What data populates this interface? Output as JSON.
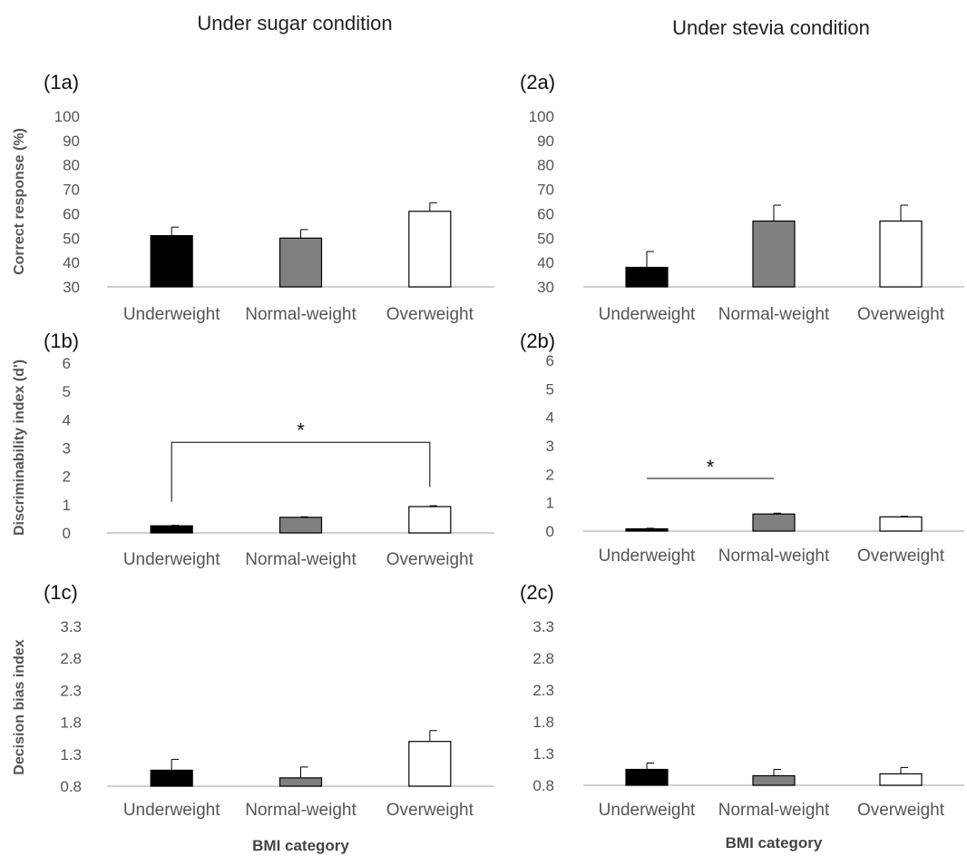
{
  "headers": {
    "left": "Under sugar condition",
    "right": "Under stevia condition"
  },
  "colors": {
    "underweight": "#000000",
    "normal_weight": "#808080",
    "overweight": "#ffffff",
    "axis": "#bfbfbf",
    "text": "#555555"
  },
  "chart_data": [
    {
      "panel": "(1a)",
      "type": "bar",
      "categories": [
        "Underweight",
        "Normal-weight",
        "Overweight"
      ],
      "values": [
        51,
        50,
        61
      ],
      "errors": [
        3.5,
        3.5,
        3.5
      ],
      "ylabel": "Correct response (%)",
      "xlabel": "",
      "yticks": [
        "30",
        "40",
        "50",
        "60",
        "70",
        "80",
        "90",
        "100"
      ],
      "ylim": [
        30,
        100
      ],
      "significance": []
    },
    {
      "panel": "(1b)",
      "type": "bar",
      "categories": [
        "Underweight",
        "Normal-weight",
        "Overweight"
      ],
      "values": [
        0.25,
        0.55,
        0.93
      ],
      "errors": [
        0.02,
        0.02,
        0.03
      ],
      "ylabel": "Discriminability index (d')",
      "xlabel": "",
      "yticks": [
        "0",
        "1",
        "2",
        "3",
        "4",
        "5",
        "6"
      ],
      "ylim": [
        0,
        6
      ],
      "significance": [
        {
          "from": 0,
          "to": 2,
          "label": "*",
          "style": "bracket"
        }
      ]
    },
    {
      "panel": "(1c)",
      "type": "bar",
      "categories": [
        "Underweight",
        "Normal-weight",
        "Overweight"
      ],
      "values": [
        1.05,
        0.93,
        1.5
      ],
      "errors": [
        0.17,
        0.17,
        0.17
      ],
      "ylabel": "Decision bias index",
      "xlabel": "BMI category",
      "yticks": [
        "0.8",
        "1.3",
        "1.8",
        "2.3",
        "2.8",
        "3.3"
      ],
      "ylim": [
        0.8,
        3.3
      ],
      "significance": []
    },
    {
      "panel": "(2a)",
      "type": "bar",
      "categories": [
        "Underweight",
        "Normal-weight",
        "Overweight"
      ],
      "values": [
        38,
        57,
        57
      ],
      "errors": [
        6.5,
        6.5,
        6.5
      ],
      "ylabel": "",
      "xlabel": "",
      "yticks": [
        "30",
        "40",
        "50",
        "60",
        "70",
        "80",
        "90",
        "100"
      ],
      "ylim": [
        30,
        100
      ],
      "significance": []
    },
    {
      "panel": "(2b)",
      "type": "bar",
      "categories": [
        "Underweight",
        "Normal-weight",
        "Overweight"
      ],
      "values": [
        0.08,
        0.6,
        0.5
      ],
      "errors": [
        0.02,
        0.03,
        0.02
      ],
      "ylabel": "",
      "xlabel": "",
      "yticks": [
        "0",
        "1",
        "2",
        "3",
        "4",
        "5",
        "6"
      ],
      "ylim": [
        0,
        6
      ],
      "significance": [
        {
          "from": 0,
          "to": 1,
          "label": "*",
          "style": "line"
        }
      ]
    },
    {
      "panel": "(2c)",
      "type": "bar",
      "categories": [
        "Underweight",
        "Normal-weight",
        "Overweight"
      ],
      "values": [
        1.05,
        0.95,
        0.98
      ],
      "errors": [
        0.1,
        0.1,
        0.1
      ],
      "ylabel": "",
      "xlabel": "BMI category",
      "yticks": [
        "0.8",
        "1.3",
        "1.8",
        "2.3",
        "2.8",
        "3.3"
      ],
      "ylim": [
        0.8,
        3.3
      ],
      "significance": []
    }
  ]
}
